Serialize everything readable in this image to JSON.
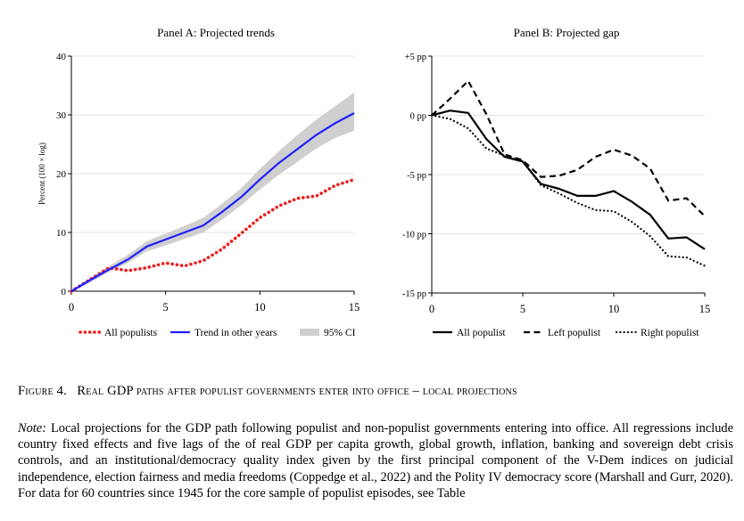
{
  "chart_data": [
    {
      "type": "line",
      "title": "Panel A: Projected trends",
      "xlabel": "",
      "ylabel": "Percent (100 × log)",
      "xlim": [
        0,
        15
      ],
      "ylim": [
        0,
        40
      ],
      "xticks": [
        0,
        5,
        10,
        15
      ],
      "yticks": [
        0,
        10,
        20,
        30,
        40
      ],
      "ytick_labels": [
        "0",
        "10",
        "20",
        "30",
        "40"
      ],
      "grid": true,
      "legend_position": "bottom",
      "x": [
        0,
        1,
        2,
        3,
        4,
        5,
        6,
        7,
        8,
        9,
        10,
        11,
        12,
        13,
        14,
        15
      ],
      "series": [
        {
          "name": "All populists",
          "style": "dotted",
          "color": "#ee1c1c",
          "values": [
            0,
            2.0,
            4.0,
            3.5,
            4.0,
            4.8,
            4.3,
            5.2,
            7.2,
            9.8,
            12.5,
            14.5,
            15.8,
            16.2,
            18.0,
            19.0
          ]
        },
        {
          "name": "Trend in other years",
          "style": "solid",
          "color": "#1f1fff",
          "values": [
            0,
            1.9,
            3.7,
            5.4,
            7.6,
            8.8,
            10.0,
            11.2,
            13.5,
            16.0,
            19.0,
            21.8,
            24.2,
            26.6,
            28.6,
            30.3
          ]
        },
        {
          "name": "95% CI",
          "style": "band",
          "color": "#cfcfcf",
          "lower": [
            0,
            1.5,
            3.3,
            4.8,
            6.8,
            7.8,
            8.9,
            10.0,
            12.2,
            14.6,
            17.3,
            19.8,
            22.0,
            24.3,
            26.1,
            27.3
          ],
          "upper": [
            0,
            2.3,
            4.3,
            6.2,
            8.5,
            9.8,
            11.1,
            12.5,
            14.9,
            17.5,
            20.8,
            23.8,
            26.6,
            29.2,
            31.5,
            33.8
          ]
        }
      ]
    },
    {
      "type": "line",
      "title": "Panel B: Projected gap",
      "xlabel": "",
      "ylabel": "",
      "xlim": [
        0,
        15
      ],
      "ylim": [
        -15,
        5
      ],
      "xticks": [
        0,
        5,
        10,
        15
      ],
      "yticks": [
        5,
        0,
        -5,
        -10,
        -15
      ],
      "ytick_labels": [
        "+5 pp",
        "0 pp",
        "-5 pp",
        "-10 pp",
        "-15 pp"
      ],
      "grid": true,
      "legend_position": "bottom",
      "x": [
        0,
        1,
        2,
        3,
        4,
        5,
        6,
        7,
        8,
        9,
        10,
        11,
        12,
        13,
        14,
        15
      ],
      "series": [
        {
          "name": "All populist",
          "style": "solid",
          "color": "#000000",
          "values": [
            0,
            0.4,
            0.2,
            -2.0,
            -3.5,
            -3.9,
            -5.8,
            -6.2,
            -6.8,
            -6.8,
            -6.4,
            -7.3,
            -8.4,
            -10.4,
            -10.3,
            -11.3
          ]
        },
        {
          "name": "Left populist",
          "style": "dashed",
          "color": "#000000",
          "values": [
            0,
            1.4,
            2.9,
            0.1,
            -3.3,
            -3.8,
            -5.2,
            -5.1,
            -4.6,
            -3.5,
            -2.9,
            -3.4,
            -4.5,
            -7.2,
            -7.0,
            -8.5
          ]
        },
        {
          "name": "Right populist",
          "style": "dotted",
          "color": "#000000",
          "values": [
            0,
            -0.3,
            -1.1,
            -2.8,
            -3.4,
            -3.9,
            -5.9,
            -6.6,
            -7.4,
            -8.0,
            -8.1,
            -9.0,
            -10.2,
            -11.9,
            -12.0,
            -12.7
          ]
        }
      ]
    }
  ],
  "caption": {
    "label": "Figure 4.",
    "text": "Real GDP paths after populist governments enter into office – local projections"
  },
  "note": {
    "label": "Note:",
    "text": "Local projections for the GDP path following populist and non-populist governments entering into office. All regressions include country fixed effects and five lags of the of real GDP per capita growth, global growth, inflation, banking and sovereign debt crisis controls, and an institutional/democracy quality index given by the first principal component of the V-Dem indices on judicial independence, election fairness and media freedoms (Coppedge et al., 2022) and the Polity IV democracy score (Marshall and Gurr, 2020). For data for 60 countries since 1945 for the core sample of populist episodes, see Table"
  }
}
